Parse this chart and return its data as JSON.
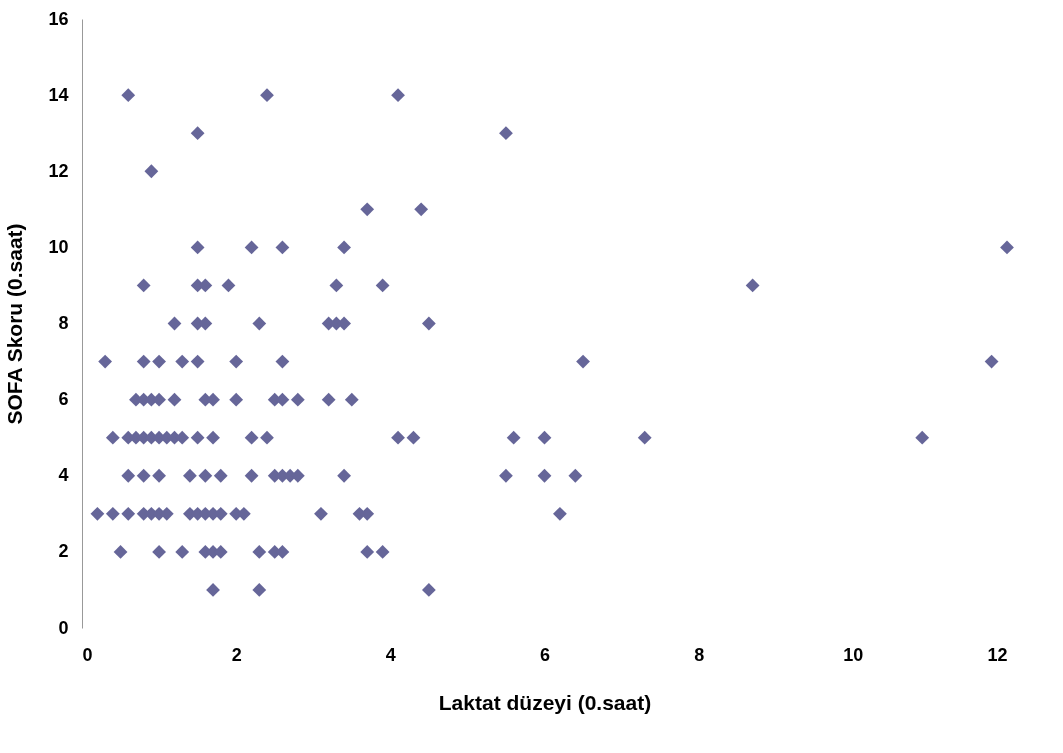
{
  "chart_data": {
    "type": "scatter",
    "xlabel": "Laktat düzeyi (0.saat)",
    "ylabel": "SOFA Skoru (0.saat)",
    "xlim": [
      0,
      12
    ],
    "xticks": [
      0,
      2,
      4,
      6,
      8,
      10,
      12
    ],
    "ylim": [
      0,
      16
    ],
    "yticks": [
      0,
      2,
      4,
      6,
      8,
      10,
      12,
      14,
      16
    ],
    "grid": false,
    "marker": "diamond",
    "series": [
      {
        "color": "#666699",
        "x": [
          0.6,
          2.4,
          4.1,
          1.5,
          5.5,
          0.9,
          3.7,
          4.4,
          1.5,
          2.2,
          2.6,
          3.4,
          12.0,
          0.8,
          1.5,
          1.6,
          1.9,
          3.3,
          3.9,
          8.7,
          1.2,
          1.5,
          1.6,
          2.3,
          3.2,
          3.3,
          3.4,
          4.5,
          0.3,
          0.8,
          1.0,
          1.3,
          1.5,
          2.0,
          2.6,
          6.5,
          11.8,
          0.7,
          0.8,
          0.9,
          1.0,
          1.2,
          1.6,
          1.7,
          2.0,
          2.5,
          2.6,
          2.8,
          3.2,
          3.5,
          0.4,
          0.6,
          0.7,
          0.8,
          0.9,
          1.0,
          1.1,
          1.2,
          1.3,
          1.5,
          1.7,
          2.2,
          2.4,
          4.1,
          4.3,
          5.6,
          6.0,
          7.3,
          10.9,
          0.6,
          0.8,
          1.0,
          1.4,
          1.6,
          1.8,
          2.2,
          2.5,
          2.6,
          2.7,
          2.8,
          3.4,
          5.5,
          6.0,
          6.4,
          0.2,
          0.4,
          0.6,
          0.8,
          0.9,
          1.0,
          1.1,
          1.4,
          1.5,
          1.6,
          1.7,
          1.8,
          2.0,
          2.1,
          3.1,
          3.6,
          3.7,
          6.2,
          0.5,
          1.0,
          1.3,
          1.6,
          1.7,
          1.8,
          2.3,
          2.5,
          2.6,
          3.7,
          3.9,
          1.7,
          2.3,
          4.5
        ],
        "values": [
          14,
          14,
          14,
          13,
          13,
          12,
          11,
          11,
          10,
          10,
          10,
          10,
          10,
          9,
          9,
          9,
          9,
          9,
          9,
          9,
          8,
          8,
          8,
          8,
          8,
          8,
          8,
          8,
          7,
          7,
          7,
          7,
          7,
          7,
          7,
          7,
          7,
          6,
          6,
          6,
          6,
          6,
          6,
          6,
          6,
          6,
          6,
          6,
          6,
          6,
          5,
          5,
          5,
          5,
          5,
          5,
          5,
          5,
          5,
          5,
          5,
          5,
          5,
          5,
          5,
          5,
          5,
          5,
          5,
          4,
          4,
          4,
          4,
          4,
          4,
          4,
          4,
          4,
          4,
          4,
          4,
          4,
          4,
          4,
          3,
          3,
          3,
          3,
          3,
          3,
          3,
          3,
          3,
          3,
          3,
          3,
          3,
          3,
          3,
          3,
          3,
          3,
          2,
          2,
          2,
          2,
          2,
          2,
          2,
          2,
          2,
          2,
          2,
          1,
          1,
          1
        ]
      }
    ]
  }
}
